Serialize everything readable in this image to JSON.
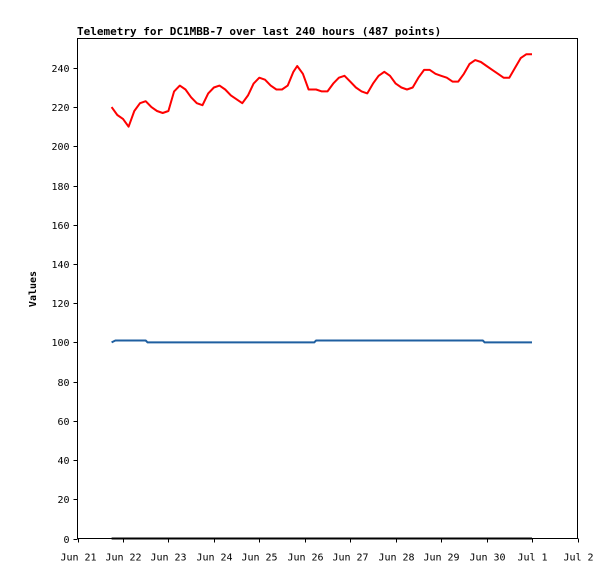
{
  "chart_data": {
    "type": "line",
    "title": "Telemetry for DC1MBB-7 over last 240 hours (487 points)",
    "xlabel": "",
    "ylabel": "Values",
    "ylim": [
      0,
      255
    ],
    "yticks": [
      0,
      20,
      40,
      60,
      80,
      100,
      120,
      140,
      160,
      180,
      200,
      220,
      240
    ],
    "xlim": [
      "Jun 21",
      "Jul 2"
    ],
    "xticks": [
      "Jun 21",
      "Jun 22",
      "Jun 23",
      "Jun 24",
      "Jun 25",
      "Jun 26",
      "Jun 27",
      "Jun 28",
      "Jun 29",
      "Jun 30",
      "Jul 1",
      "Jul 2"
    ],
    "grid": false,
    "legend": "none",
    "series": [
      {
        "color": "#ff0000",
        "points": [
          [
            "Jun 21 18:00",
            220
          ],
          [
            "Jun 21 21:00",
            216
          ],
          [
            "Jun 22 00:00",
            214
          ],
          [
            "Jun 22 03:00",
            210
          ],
          [
            "Jun 22 06:00",
            218
          ],
          [
            "Jun 22 09:00",
            222
          ],
          [
            "Jun 22 12:00",
            223
          ],
          [
            "Jun 22 15:00",
            220
          ],
          [
            "Jun 22 18:00",
            218
          ],
          [
            "Jun 22 21:00",
            217
          ],
          [
            "Jun 23 00:00",
            218
          ],
          [
            "Jun 23 03:00",
            228
          ],
          [
            "Jun 23 06:00",
            231
          ],
          [
            "Jun 23 09:00",
            229
          ],
          [
            "Jun 23 12:00",
            225
          ],
          [
            "Jun 23 15:00",
            222
          ],
          [
            "Jun 23 18:00",
            221
          ],
          [
            "Jun 23 21:00",
            227
          ],
          [
            "Jun 24 00:00",
            230
          ],
          [
            "Jun 24 03:00",
            231
          ],
          [
            "Jun 24 06:00",
            229
          ],
          [
            "Jun 24 09:00",
            226
          ],
          [
            "Jun 24 12:00",
            224
          ],
          [
            "Jun 24 15:00",
            222
          ],
          [
            "Jun 24 18:00",
            226
          ],
          [
            "Jun 24 21:00",
            232
          ],
          [
            "Jun 25 00:00",
            235
          ],
          [
            "Jun 25 03:00",
            234
          ],
          [
            "Jun 25 06:00",
            231
          ],
          [
            "Jun 25 09:00",
            229
          ],
          [
            "Jun 25 12:00",
            229
          ],
          [
            "Jun 25 15:00",
            231
          ],
          [
            "Jun 25 18:00",
            238
          ],
          [
            "Jun 25 20:00",
            241
          ],
          [
            "Jun 25 23:00",
            237
          ],
          [
            "Jun 26 02:00",
            229
          ],
          [
            "Jun 26 06:00",
            229
          ],
          [
            "Jun 26 09:00",
            228
          ],
          [
            "Jun 26 12:00",
            228
          ],
          [
            "Jun 26 15:00",
            232
          ],
          [
            "Jun 26 18:00",
            235
          ],
          [
            "Jun 26 21:00",
            236
          ],
          [
            "Jun 27 00:00",
            233
          ],
          [
            "Jun 27 03:00",
            230
          ],
          [
            "Jun 27 06:00",
            228
          ],
          [
            "Jun 27 09:00",
            227
          ],
          [
            "Jun 27 12:00",
            232
          ],
          [
            "Jun 27 15:00",
            236
          ],
          [
            "Jun 27 18:00",
            238
          ],
          [
            "Jun 27 21:00",
            236
          ],
          [
            "Jun 28 00:00",
            232
          ],
          [
            "Jun 28 03:00",
            230
          ],
          [
            "Jun 28 06:00",
            229
          ],
          [
            "Jun 28 09:00",
            230
          ],
          [
            "Jun 28 12:00",
            235
          ],
          [
            "Jun 28 15:00",
            239
          ],
          [
            "Jun 28 18:00",
            239
          ],
          [
            "Jun 28 21:00",
            237
          ],
          [
            "Jun 29 00:00",
            236
          ],
          [
            "Jun 29 03:00",
            235
          ],
          [
            "Jun 29 06:00",
            233
          ],
          [
            "Jun 29 09:00",
            233
          ],
          [
            "Jun 29 12:00",
            237
          ],
          [
            "Jun 29 15:00",
            242
          ],
          [
            "Jun 29 18:00",
            244
          ],
          [
            "Jun 29 21:00",
            243
          ],
          [
            "Jun 30 00:00",
            241
          ],
          [
            "Jun 30 03:00",
            239
          ],
          [
            "Jun 30 06:00",
            237
          ],
          [
            "Jun 30 09:00",
            235
          ],
          [
            "Jun 30 12:00",
            235
          ],
          [
            "Jun 30 15:00",
            240
          ],
          [
            "Jun 30 18:00",
            245
          ],
          [
            "Jun 30 21:00",
            247
          ],
          [
            "Jul 1 00:00",
            247
          ]
        ]
      },
      {
        "color": "#1f5fa0",
        "points": [
          [
            "Jun 21 18:00",
            100
          ],
          [
            "Jun 21 20:00",
            101
          ],
          [
            "Jun 22 12:00",
            101
          ],
          [
            "Jun 22 13:00",
            100
          ],
          [
            "Jun 26 05:00",
            100
          ],
          [
            "Jun 26 06:00",
            101
          ],
          [
            "Jun 29 22:00",
            101
          ],
          [
            "Jun 29 23:00",
            100
          ],
          [
            "Jul 1 00:00",
            100
          ]
        ]
      },
      {
        "color": "#000000",
        "points": [
          [
            "Jun 21 18:00",
            0
          ],
          [
            "Jul 1 00:00",
            0
          ]
        ]
      }
    ]
  }
}
